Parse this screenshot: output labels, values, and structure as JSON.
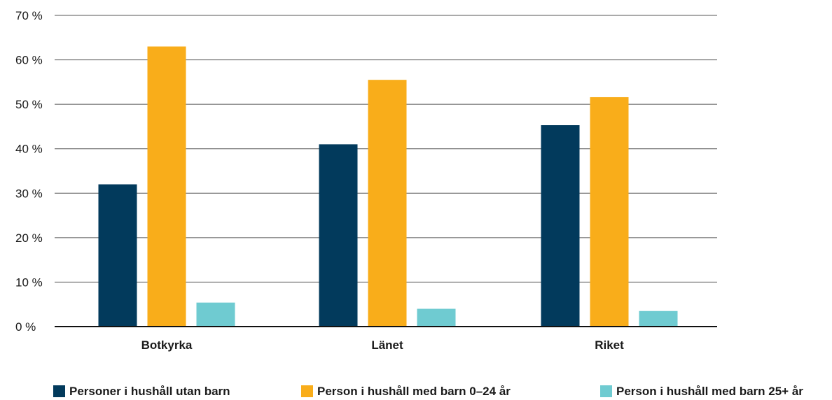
{
  "chart_data": {
    "type": "bar",
    "categories": [
      "Botkyrka",
      "Länet",
      "Riket"
    ],
    "series": [
      {
        "name": "Personer i hushåll utan barn",
        "color": "#023a5c",
        "values": [
          32,
          41,
          45.3
        ]
      },
      {
        "name": "Person i hushåll med barn 0–24 år",
        "color": "#f9ad1a",
        "values": [
          63,
          55.5,
          51.6
        ]
      },
      {
        "name": "Person i hushåll med barn 25+ år",
        "color": "#6fcbd1",
        "values": [
          5.4,
          4,
          3.5
        ]
      }
    ],
    "y_ticks": [
      "0 %",
      "10 %",
      "20 %",
      "30 %",
      "40 %",
      "50 %",
      "60 %",
      "70 %"
    ],
    "ylim": [
      0,
      70
    ],
    "grid": true,
    "legend_position": "bottom",
    "title": "",
    "xlabel": "",
    "ylabel": ""
  }
}
